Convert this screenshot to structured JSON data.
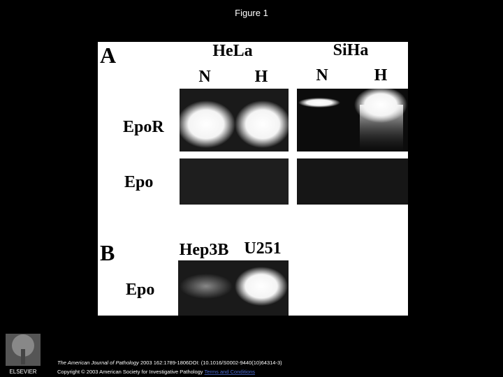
{
  "header": {
    "title": "Figure 1"
  },
  "figure": {
    "panel_a": {
      "label": "A",
      "cell_lines": [
        "HeLa",
        "SiHa"
      ],
      "lanes": [
        "N",
        "H",
        "N",
        "H"
      ],
      "rows": [
        "EpoR",
        "Epo"
      ]
    },
    "panel_b": {
      "label": "B",
      "cell_lines": [
        "Hep3B",
        "U251"
      ],
      "rows": [
        "Epo"
      ]
    }
  },
  "footer": {
    "journal": "The American Journal of Pathology",
    "citation": "2003 162:1789-1806DOI: (10.1016/S0002-9440(10)64314-3)",
    "copyright": "Copyright © 2003 American Society for Investigative Pathology",
    "link": "Terms and Conditions",
    "publisher": "ELSEVIER"
  }
}
